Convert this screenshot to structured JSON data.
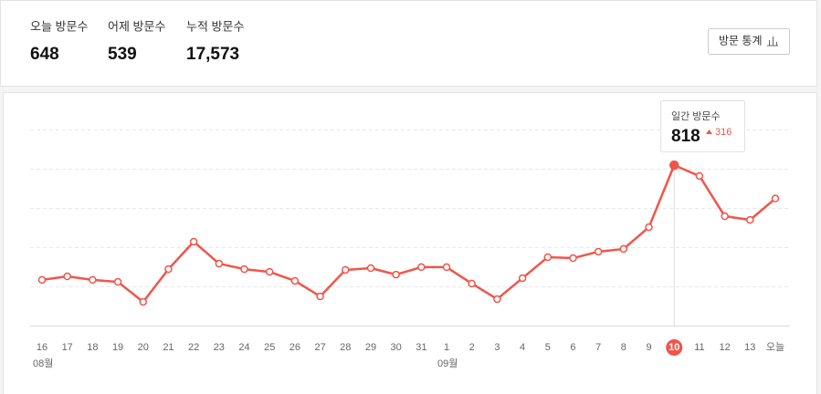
{
  "stats": [
    {
      "label": "오늘 방문수",
      "value": 648
    },
    {
      "label": "어제 방문수",
      "value": 539
    },
    {
      "label": "누적 방문수",
      "value": "17,573"
    }
  ],
  "button": "방문 통계",
  "chart_data": {
    "type": "line",
    "categories": [
      "16",
      "17",
      "18",
      "19",
      "20",
      "21",
      "22",
      "23",
      "24",
      "25",
      "26",
      "27",
      "28",
      "29",
      "30",
      "31",
      "1",
      "2",
      "3",
      "4",
      "5",
      "6",
      "7",
      "8",
      "9",
      "10",
      "11",
      "12",
      "13",
      "오늘"
    ],
    "month_labels": [
      "08월",
      null,
      null,
      null,
      null,
      null,
      null,
      null,
      null,
      null,
      null,
      null,
      null,
      null,
      null,
      null,
      "09월",
      null,
      null,
      null,
      null,
      null,
      null,
      null,
      null,
      null,
      null,
      null,
      null,
      null
    ],
    "series": [
      {
        "name": "일간 방문수",
        "color": "#f0554a",
        "values": [
          233,
          251,
          233,
          223,
          121,
          288,
          428,
          316,
          288,
          274,
          228,
          149,
          284,
          293,
          260,
          298,
          298,
          214,
          135,
          242,
          349,
          344,
          377,
          391,
          502,
          818,
          763,
          558,
          539,
          648
        ]
      }
    ],
    "ylim": [
      0,
      1000
    ],
    "yticks": [
      0,
      200,
      400,
      600,
      800,
      1000
    ],
    "grid": true,
    "highlight_category": "10",
    "tooltip": {
      "title": "일간 방문수",
      "value": 818,
      "change": 316
    }
  }
}
